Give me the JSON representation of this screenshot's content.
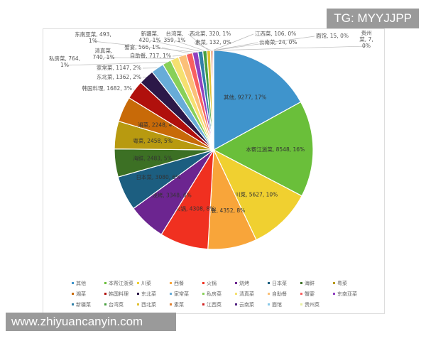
{
  "watermarks": {
    "top": "TG: MYYJJPP",
    "bottom": "www.zhiyuancanyin.com"
  },
  "chart_data": {
    "type": "pie",
    "start": "12 o'clock, clockwise",
    "legend_position": "bottom",
    "categories": [
      "其他",
      "本帮江浙菜",
      "川菜",
      "西餐",
      "火锅",
      "烧烤",
      "日本菜",
      "海鲜",
      "粤菜",
      "湘菜",
      "韩国料理",
      "东北菜",
      "家常菜",
      "私房菜",
      "清真菜",
      "自助餐",
      "蟹宴",
      "东南亚菜",
      "新疆菜",
      "台湾菜",
      "西北菜",
      "素菜",
      "江西菜",
      "云南菜",
      "面馆",
      "贵州菜"
    ],
    "values": [
      9277,
      8548,
      5627,
      4352,
      4308,
      3348,
      3080,
      2483,
      2458,
      2248,
      1682,
      1362,
      1147,
      764,
      740,
      717,
      566,
      493,
      420,
      359,
      320,
      132,
      106,
      24,
      15,
      7
    ],
    "percent_labels": [
      "17%",
      "16%",
      "10%",
      "8%",
      "8%",
      "6%",
      "6%",
      "5%",
      "5%",
      "4%",
      "3%",
      "2%",
      "2%",
      "1%",
      "1%",
      "1%",
      "1%",
      "1%",
      "1%",
      "1%",
      "1%",
      "0%",
      "0%",
      "0%",
      "0%",
      "0%"
    ],
    "colors": [
      "#3f94cc",
      "#6abf3a",
      "#f0d030",
      "#f8a53a",
      "#f03020",
      "#6c2590",
      "#1c5e80",
      "#3c7024",
      "#b89a10",
      "#c86a08",
      "#b0100c",
      "#2c1848",
      "#68acd8",
      "#88d058",
      "#f5e070",
      "#fbc078",
      "#f86060",
      "#9040c0",
      "#3080a8",
      "#48a040",
      "#e0c030",
      "#e08030",
      "#d02020",
      "#502080",
      "#88c8e8",
      "#e8f0a0"
    ]
  }
}
